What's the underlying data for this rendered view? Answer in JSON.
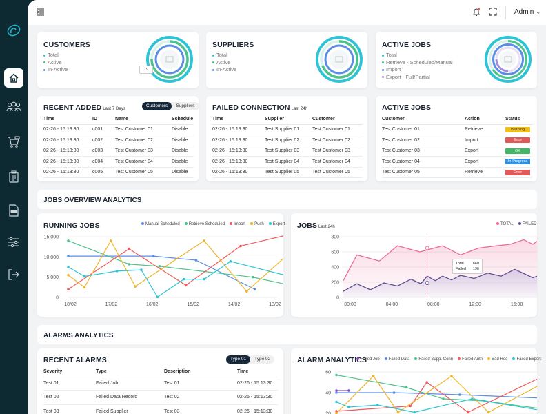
{
  "topbar": {
    "user": "Admin"
  },
  "customers": {
    "title": "CUSTOMERS",
    "legend": [
      "Total",
      "Active",
      "In-Active"
    ],
    "tooltip": "19"
  },
  "suppliers": {
    "title": "SUPPLIERS",
    "legend": [
      "Total",
      "Active",
      "In-Active"
    ]
  },
  "active_jobs_summary": {
    "title": "ACTIVE JOBS",
    "legend": [
      "Total",
      "Retrieve - Scheduled/Manual",
      "Import",
      "Export - Full/Partial"
    ]
  },
  "recent_added": {
    "title": "RECENT ADDED",
    "subtitle": "Last 7 Days",
    "toggle": [
      "Customers",
      "Suppliers"
    ],
    "columns": [
      "Time",
      "ID",
      "Name",
      "Schedule"
    ],
    "rows": [
      [
        "02-26 - 15:13:30",
        "c001",
        "Test Customer 01",
        "Disable"
      ],
      [
        "02-26 - 15:13:30",
        "c002",
        "Test Customer 02",
        "Disable"
      ],
      [
        "02-26 - 15:13:30",
        "c003",
        "Test Customer 03",
        "Disable"
      ],
      [
        "02-26 - 15:13:30",
        "c004",
        "Test Customer 04",
        "Disable"
      ],
      [
        "02-26 - 15:13:30",
        "c005",
        "Test Customer 05",
        "Disable"
      ]
    ]
  },
  "failed_connection": {
    "title": "FAILED CONNECTION",
    "subtitle": "Last 24h",
    "columns": [
      "Time",
      "Supplier",
      "Customer"
    ],
    "rows": [
      [
        "02-26 - 15:13:30",
        "Test Supplier 01",
        "Test Customer 01"
      ],
      [
        "02-26 - 15:13:30",
        "Test Supplier 02",
        "Test Customer 02"
      ],
      [
        "02-26 - 15:13:30",
        "Test Supplier 03",
        "Test Customer 03"
      ],
      [
        "02-26 - 15:13:30",
        "Test Supplier 04",
        "Test Customer 04"
      ],
      [
        "02-26 - 15:13:30",
        "Test Supplier 05",
        "Test Customer 05"
      ]
    ]
  },
  "active_jobs_table": {
    "title": "ACTIVE JOBS",
    "columns": [
      "Customer",
      "Action",
      "Status"
    ],
    "rows": [
      [
        "Test Customer 01",
        "Retrieve",
        "Warning"
      ],
      [
        "Test Customer 02",
        "Import",
        "Error"
      ],
      [
        "Test Customer 03",
        "Export",
        "OK"
      ],
      [
        "Test Customer 04",
        "Export",
        "In-Progress"
      ],
      [
        "Test Customer 05",
        "Retrieve",
        "Error"
      ]
    ],
    "status_colors": {
      "Warning": "#f2c118",
      "Error": "#e05a5a",
      "OK": "#3fb765",
      "In-Progress": "#2f8fe0"
    }
  },
  "jobs_overview": {
    "title": "JOBS OVERVIEW ANALYTICS"
  },
  "running_jobs": {
    "title": "RUNNING JOBS",
    "legend": [
      {
        "name": "Manual Scheduled",
        "color": "#5b8ee6"
      },
      {
        "name": "Retrieve Scheduled",
        "color": "#4cc38a"
      },
      {
        "name": "Import",
        "color": "#ef5b5b"
      },
      {
        "name": "Push",
        "color": "#f0b429"
      },
      {
        "name": "Export",
        "color": "#2ec4d6"
      }
    ]
  },
  "jobs_24h": {
    "title": "JOBS",
    "subtitle": "Last 24h",
    "legend": [
      {
        "name": "TOTAL",
        "color": "#ec6a95"
      },
      {
        "name": "FAILED",
        "color": "#5c4d8f"
      }
    ],
    "tooltip": {
      "label1": "Total",
      "value1": "660",
      "label2": "Failed",
      "value2": "190"
    }
  },
  "alarms_analytics": {
    "title": "ALARMS ANALYTICS"
  },
  "recent_alarms": {
    "title": "RECENT ALARMS",
    "toggle": [
      "Type 01",
      "Type 02"
    ],
    "columns": [
      "Severity",
      "Type",
      "Description",
      "Time"
    ],
    "rows": [
      [
        "Test 01",
        "Failed Job",
        "Test 01",
        "02-26 - 15:13:30"
      ],
      [
        "Test 02",
        "Failed Data Record",
        "Test 02",
        "02-26 - 15:13:30"
      ],
      [
        "Test 03",
        "Failed Supplier",
        "Test 03",
        "02-26 - 15:13:30"
      ]
    ]
  },
  "alarm_analytics": {
    "title": "ALARM ANALYTICS",
    "legend": [
      {
        "name": "Failed Job",
        "color": "#8a4fb8"
      },
      {
        "name": "Failed Data",
        "color": "#5b8ee6"
      },
      {
        "name": "Failed Supp. Conn",
        "color": "#4cc38a"
      },
      {
        "name": "Failed Auth",
        "color": "#ef5b5b"
      },
      {
        "name": "Bad Req",
        "color": "#f0b429"
      },
      {
        "name": "Failed Export",
        "color": "#2ec4d6"
      }
    ]
  },
  "chart_data": [
    {
      "type": "line",
      "title": "RUNNING JOBS",
      "categories": [
        "18/02",
        "17/02",
        "16/02",
        "15/02",
        "14/02",
        "13/02"
      ],
      "yticks": [
        "15,000",
        "10,000",
        "5,000",
        "0"
      ],
      "ylim": [
        0,
        15000
      ],
      "series": [
        {
          "name": "Manual Scheduled",
          "x": [
            0,
            2.1,
            3.15,
            4.6
          ],
          "values": [
            10200,
            10200,
            9200,
            2000
          ]
        },
        {
          "name": "Retrieve Scheduled",
          "x": [
            0,
            1.5,
            2.25,
            4.55,
            5.85
          ],
          "values": [
            14000,
            8200,
            7700,
            5000,
            2200
          ]
        },
        {
          "name": "Import",
          "x": [
            0,
            1.5,
            2.9,
            4.25,
            5.85
          ],
          "values": [
            2000,
            12000,
            3000,
            12700,
            16500
          ]
        },
        {
          "name": "Push",
          "x": [
            0,
            0.4,
            1.05,
            1.65,
            3.35,
            4.4,
            5.85
          ],
          "values": [
            5500,
            2500,
            14000,
            2700,
            14000,
            1500,
            14500
          ]
        },
        {
          "name": "Export",
          "x": [
            0,
            0.4,
            1.2,
            1.8,
            2.2,
            2.85,
            3.35,
            4.0,
            5.85
          ],
          "values": [
            7500,
            5200,
            6500,
            6800,
            100,
            4500,
            4500,
            8900,
            4200
          ]
        }
      ]
    },
    {
      "type": "area",
      "title": "JOBS",
      "xticks": [
        "00:00",
        "04:00",
        "08:00",
        "12:00",
        "16:00",
        "20:00"
      ],
      "yticks": [
        "800",
        "600",
        "400",
        "200",
        "0"
      ],
      "ylim": [
        0,
        800
      ],
      "series": [
        {
          "name": "TOTAL",
          "x": [
            0,
            1.5,
            4,
            6,
            8.5,
            11,
            13,
            15,
            17,
            18.5,
            20,
            21,
            22,
            23.5
          ],
          "values": [
            220,
            560,
            480,
            680,
            600,
            680,
            560,
            650,
            680,
            700,
            760,
            700,
            780,
            760
          ]
        },
        {
          "name": "FAILED",
          "x": [
            0,
            1.5,
            3,
            4.5,
            6,
            7.5,
            8.6,
            9.3,
            10.2,
            11,
            12,
            13,
            14.5,
            16,
            17.5,
            19,
            21,
            22.5,
            23.5
          ],
          "values": [
            80,
            180,
            100,
            190,
            150,
            240,
            180,
            280,
            220,
            280,
            230,
            290,
            250,
            320,
            280,
            370,
            260,
            320,
            380
          ]
        }
      ]
    },
    {
      "type": "line",
      "title": "ALARM ANALYTICS",
      "yticks": [
        "60",
        "40",
        "20"
      ],
      "ylim": [
        20,
        65
      ],
      "series": [
        {
          "name": "Failed Job",
          "x": [
            0,
            0.3
          ],
          "values": [
            42,
            42
          ]
        },
        {
          "name": "Failed Data",
          "x": [
            0,
            1.4,
            3.0,
            5.4
          ],
          "values": [
            40,
            40,
            38,
            34
          ]
        },
        {
          "name": "Failed Supp. Conn",
          "x": [
            0,
            1.7,
            2.6,
            3.6,
            5.4
          ],
          "values": [
            57,
            45,
            34,
            32,
            22
          ]
        },
        {
          "name": "Failed Auth",
          "x": [
            0,
            1.8,
            2.2,
            3.2,
            5.4
          ],
          "values": [
            22,
            27,
            50,
            21,
            63
          ]
        },
        {
          "name": "Bad Req",
          "x": [
            0,
            0.9,
            1.5,
            2.8,
            3.7,
            5.4
          ],
          "values": [
            20,
            56,
            21,
            56,
            21,
            57
          ]
        },
        {
          "name": "Failed Export",
          "x": [
            0,
            0.3,
            1.0,
            1.9,
            3.3,
            5.4
          ],
          "values": [
            31,
            26,
            28,
            21,
            34,
            20
          ]
        }
      ]
    }
  ]
}
